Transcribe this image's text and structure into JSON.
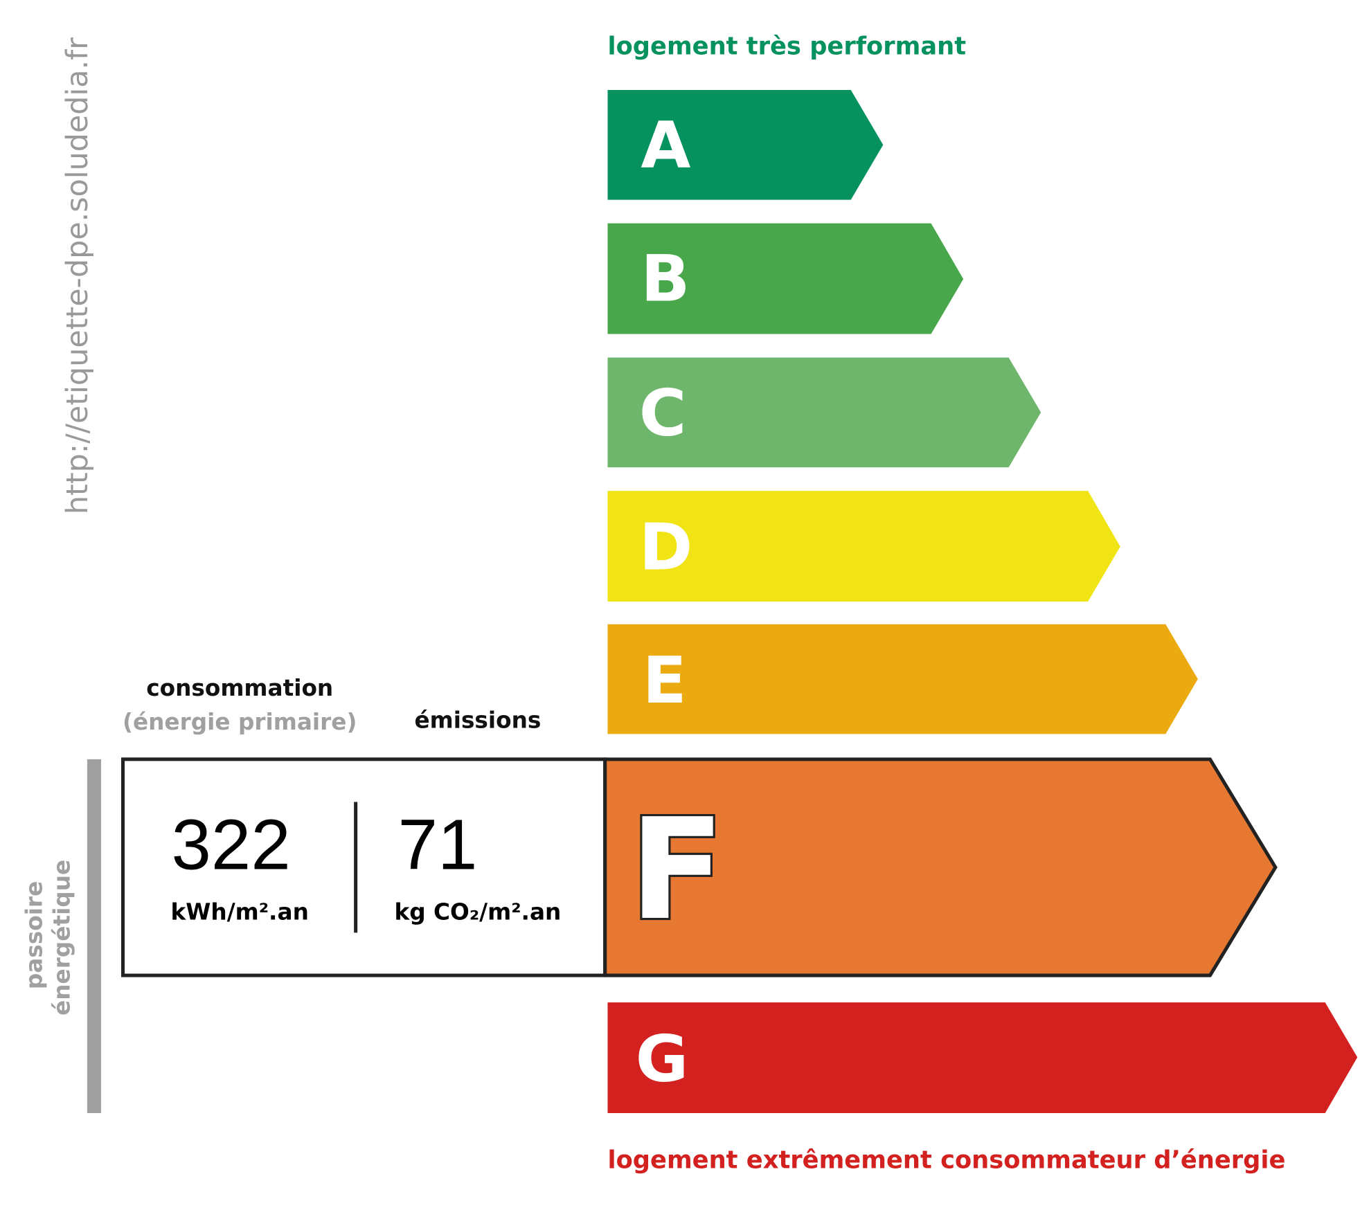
{
  "source_url": "http://etiquette-dpe.soludedia.fr",
  "top_label": "logement très performant",
  "bottom_label": "logement extrêmement consommateur d’énergie",
  "side_label_line1": "passoire",
  "side_label_line2": "énergétique",
  "consumption": {
    "title": "consommation",
    "subtitle": "(énergie primaire)",
    "value": "322",
    "unit": "kWh/m².an"
  },
  "emissions": {
    "title": "émissions",
    "value": "71",
    "unit": "kg CO₂/m².an"
  },
  "current_class": "F",
  "classes": [
    {
      "letter": "A",
      "color": "#05925f"
    },
    {
      "letter": "B",
      "color": "#48a74b"
    },
    {
      "letter": "C",
      "color": "#6eb66c"
    },
    {
      "letter": "D",
      "color": "#f1e415"
    },
    {
      "letter": "E",
      "color": "#ecaa11"
    },
    {
      "letter": "F",
      "color": "#e77831"
    },
    {
      "letter": "G",
      "color": "#d3211f"
    }
  ],
  "colors": {
    "top_label": "#05925f",
    "bottom_label": "#d3211f",
    "muted": "#a0a0a0"
  }
}
